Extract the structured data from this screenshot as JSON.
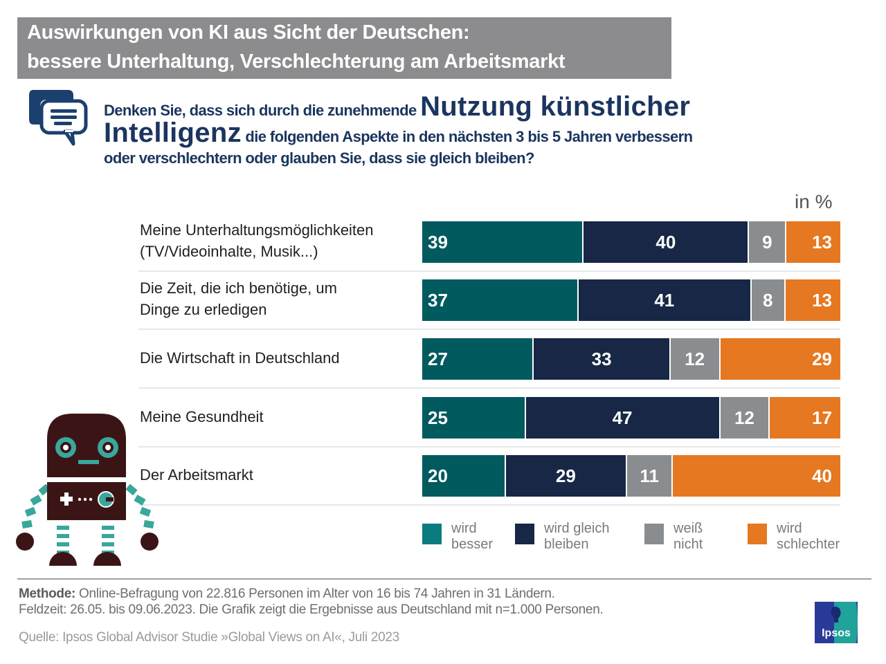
{
  "header": {
    "title_line1": "Auswirkungen von KI aus Sicht der Deutschen:",
    "title_line2": "bessere Unterhaltung, Verschlechterung am Arbeitsmarkt"
  },
  "question": {
    "icon": "chat-bubbles-icon",
    "part1": "Denken Sie, dass sich durch die zunehmende ",
    "part2_big": "Nutzung künstlicher",
    "part3_big": "Intelligenz",
    "part4": " die folgenden Aspekte in den nächsten 3 bis 5 Jahren verbessern",
    "part5": "oder verschlechtern oder glauben Sie, dass sie gleich bleiben?"
  },
  "unit_label": "in %",
  "colors": {
    "wird_besser": "#005a5e",
    "wird_gleich_bleiben": "#172745",
    "weiss_nicht": "#8a8d90",
    "wird_schlechter": "#e57820"
  },
  "chart_data": {
    "type": "bar",
    "orientation": "horizontal",
    "stacked": true,
    "title": "Auswirkungen von KI aus Sicht der Deutschen",
    "xlabel": "",
    "ylabel": "",
    "unit": "in %",
    "categories": [
      "Meine Unterhaltungsmöglichkeiten (TV/Videoinhalte, Musik...)",
      "Die Zeit, die ich benötige, um Dinge zu erledigen",
      "Die Wirtschaft in Deutschland",
      "Meine Gesundheit",
      "Der Arbeitsmarkt"
    ],
    "category_lines": [
      [
        "Meine Unterhaltungsmöglichkeiten",
        "(TV/Videoinhalte, Musik...)"
      ],
      [
        "Die Zeit, die ich benötige, um",
        "Dinge zu erledigen"
      ],
      [
        "Die Wirtschaft in Deutschland"
      ],
      [
        "Meine Gesundheit"
      ],
      [
        "Der Arbeitsmarkt"
      ]
    ],
    "series": [
      {
        "name": "wird besser",
        "legend_lines": [
          "wird",
          "besser"
        ],
        "color": "#005a5e",
        "values": [
          39,
          37,
          27,
          25,
          20
        ]
      },
      {
        "name": "wird gleich bleiben",
        "legend_lines": [
          "wird gleich",
          "bleiben"
        ],
        "color": "#172745",
        "values": [
          40,
          41,
          33,
          47,
          29
        ]
      },
      {
        "name": "weiß nicht",
        "legend_lines": [
          "weiß",
          "nicht"
        ],
        "color": "#8a8d90",
        "values": [
          9,
          8,
          12,
          12,
          11
        ]
      },
      {
        "name": "wird schlechter",
        "legend_lines": [
          "wird",
          "schlechter"
        ],
        "color": "#e57820",
        "values": [
          13,
          13,
          29,
          17,
          40
        ]
      }
    ],
    "legend_position": "bottom",
    "grid": false
  },
  "footer": {
    "method_label": "Methode:",
    "method_text": " Online-Befragung von 22.816 Personen im Alter von 16 bis 74 Jahren in 31 Ländern.",
    "fieldtime": "Feldzeit: 26.05. bis 09.06.2023. Die Grafik zeigt die Ergebnisse aus Deutschland mit n=1.000 Personen.",
    "source": "Quelle: Ipsos Global Advisor Studie »Global Views on AI«, Juli 2023",
    "logo_text": "Ipsos"
  }
}
